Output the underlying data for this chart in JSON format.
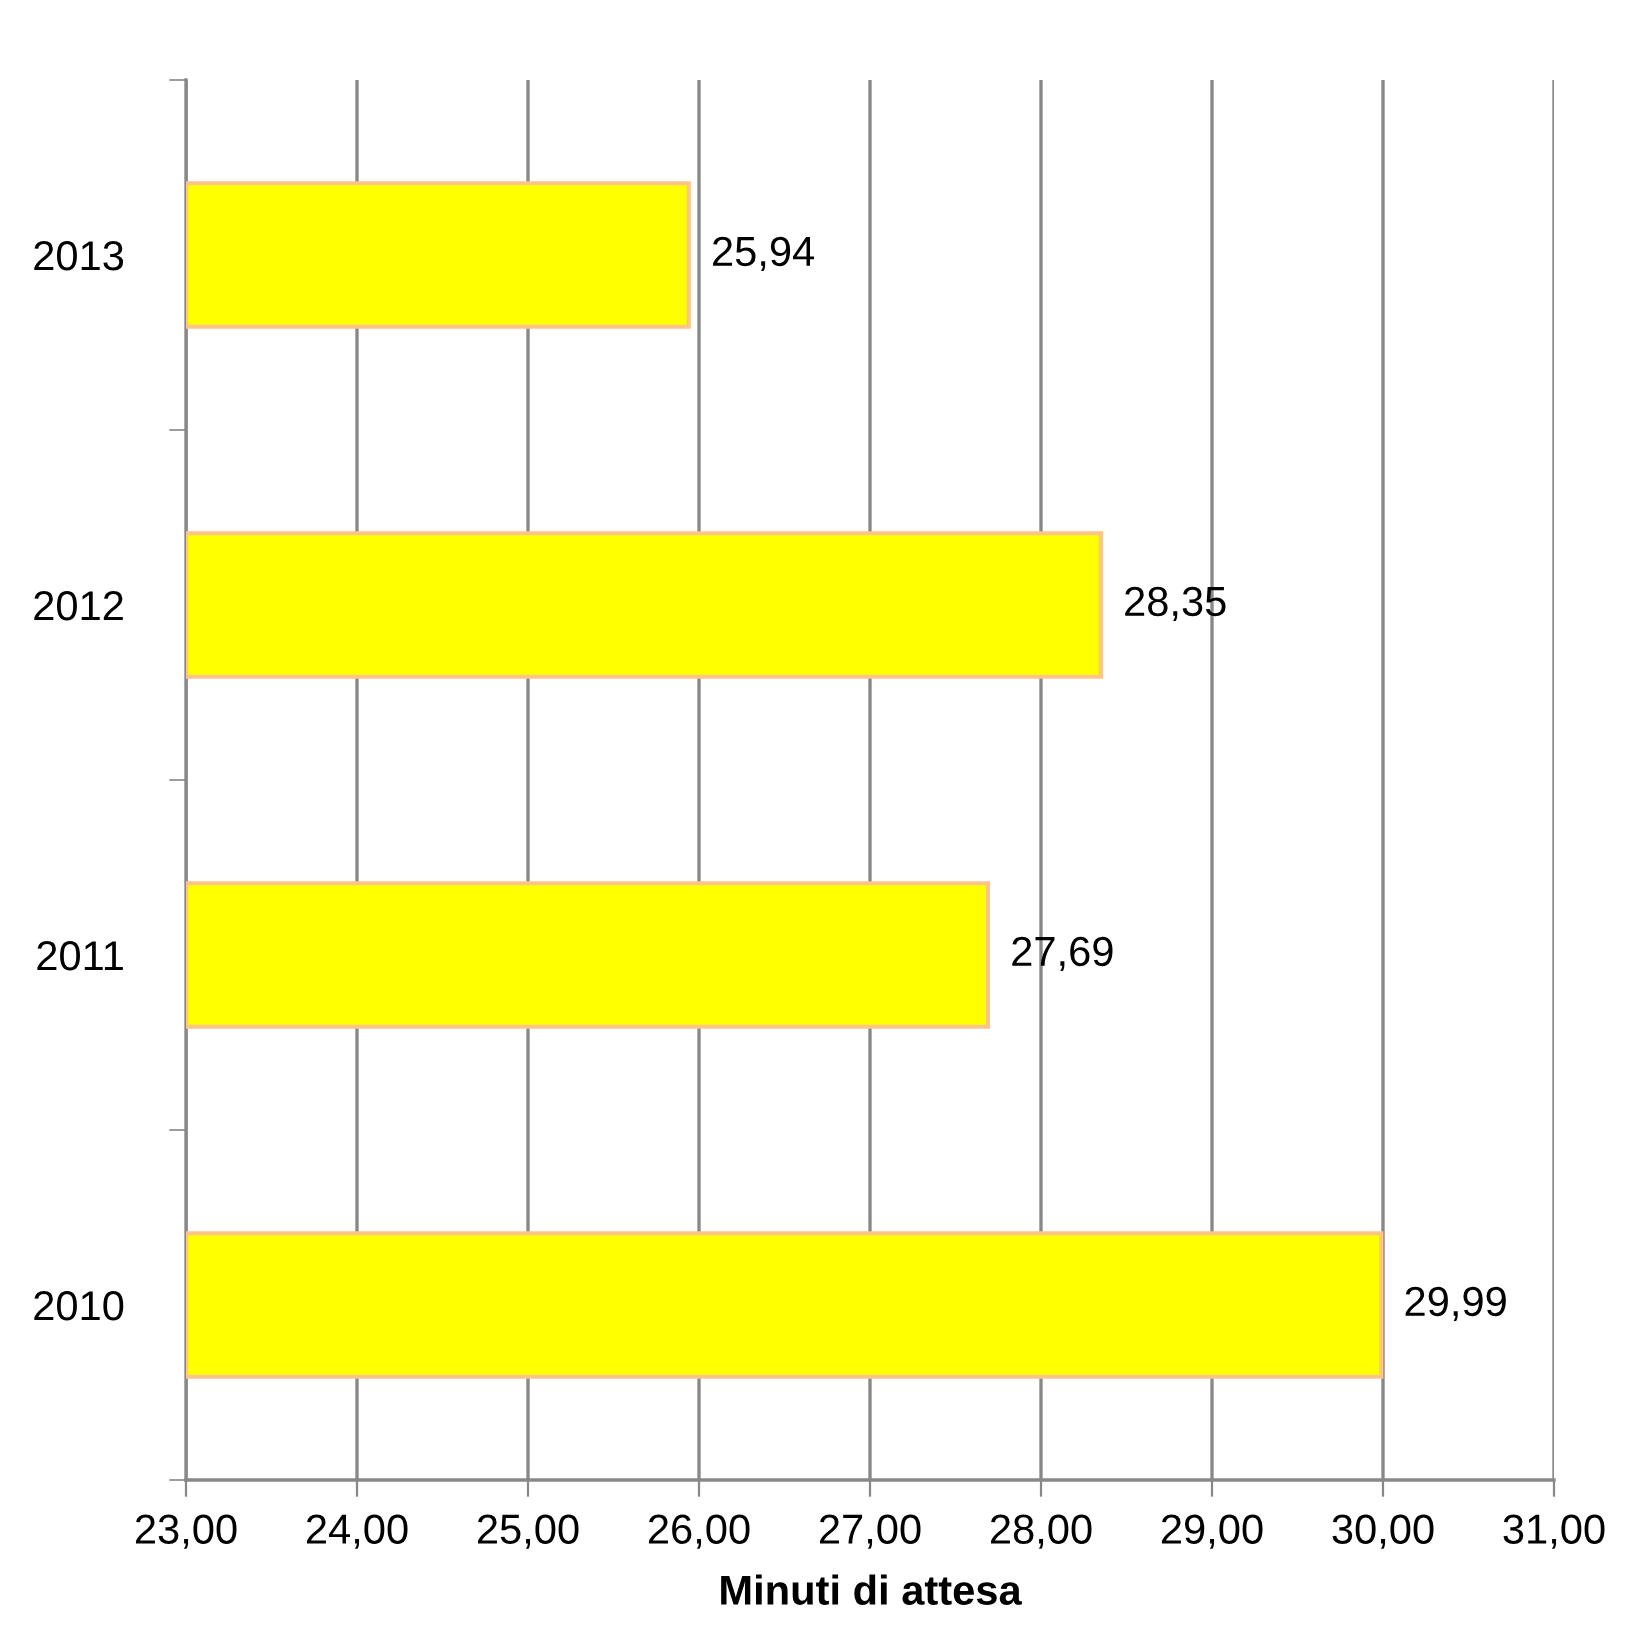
{
  "chart_data": {
    "type": "bar",
    "orientation": "horizontal",
    "xlabel": "Minuti di attesa",
    "categories": [
      "2013",
      "2012",
      "2011",
      "2010"
    ],
    "values": [
      25.94,
      28.35,
      27.69,
      29.99
    ],
    "value_labels": [
      "25,94",
      "28,35",
      "27,69",
      "29,99"
    ],
    "color": "#ffff00",
    "xlim": [
      23,
      31
    ],
    "xticks": [
      {
        "value": 23,
        "label": "23,00"
      },
      {
        "value": 24,
        "label": "24,00"
      },
      {
        "value": 25,
        "label": "25,00"
      },
      {
        "value": 26,
        "label": "26,00"
      },
      {
        "value": 27,
        "label": "27,00"
      },
      {
        "value": 28,
        "label": "28,00"
      },
      {
        "value": 29,
        "label": "29,00"
      },
      {
        "value": 30,
        "label": "30,00"
      },
      {
        "value": 31,
        "label": "31,00"
      }
    ],
    "grid": "x"
  }
}
